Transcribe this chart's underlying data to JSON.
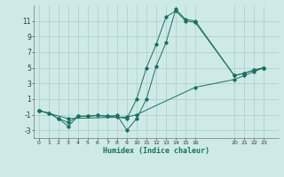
{
  "xlabel": "Humidex (Indice chaleur)",
  "bg_color": "#ceeae6",
  "grid_color": "#aaccc8",
  "line_color": "#1a6e62",
  "series": [
    {
      "x": [
        0,
        1,
        2,
        3,
        4,
        5,
        6,
        7,
        8,
        9,
        10,
        11,
        12,
        13,
        14,
        15,
        16,
        20,
        21,
        22,
        23
      ],
      "y": [
        -0.5,
        -0.8,
        -1.5,
        -2.5,
        -1.2,
        -1.2,
        -1.1,
        -1.2,
        -1.1,
        -3.0,
        -1.5,
        1.0,
        5.2,
        8.2,
        12.5,
        11.2,
        11.0,
        4.0,
        4.3,
        4.7,
        5.0
      ]
    },
    {
      "x": [
        0,
        1,
        2,
        3,
        4,
        5,
        6,
        7,
        8,
        9,
        10,
        11,
        12,
        13,
        14,
        15,
        16,
        20,
        21,
        22,
        23
      ],
      "y": [
        -0.5,
        -0.8,
        -1.5,
        -2.0,
        -1.2,
        -1.2,
        -1.1,
        -1.2,
        -1.3,
        -1.5,
        1.0,
        5.0,
        8.0,
        11.5,
        12.3,
        11.0,
        10.8,
        4.0,
        4.3,
        4.7,
        5.0
      ]
    },
    {
      "x": [
        0,
        3,
        9,
        10,
        16,
        20,
        21,
        22,
        23
      ],
      "y": [
        -0.5,
        -1.5,
        -1.3,
        -1.0,
        2.5,
        3.5,
        4.0,
        4.5,
        5.0
      ]
    }
  ],
  "xlim": [
    -0.5,
    24.5
  ],
  "ylim": [
    -4,
    13
  ],
  "xticks": [
    0,
    1,
    2,
    3,
    4,
    5,
    6,
    7,
    8,
    9,
    10,
    11,
    12,
    13,
    14,
    15,
    16,
    20,
    21,
    22,
    23
  ],
  "yticks": [
    -3,
    -1,
    1,
    3,
    5,
    7,
    9,
    11
  ],
  "figsize": [
    3.2,
    2.0
  ],
  "dpi": 100
}
